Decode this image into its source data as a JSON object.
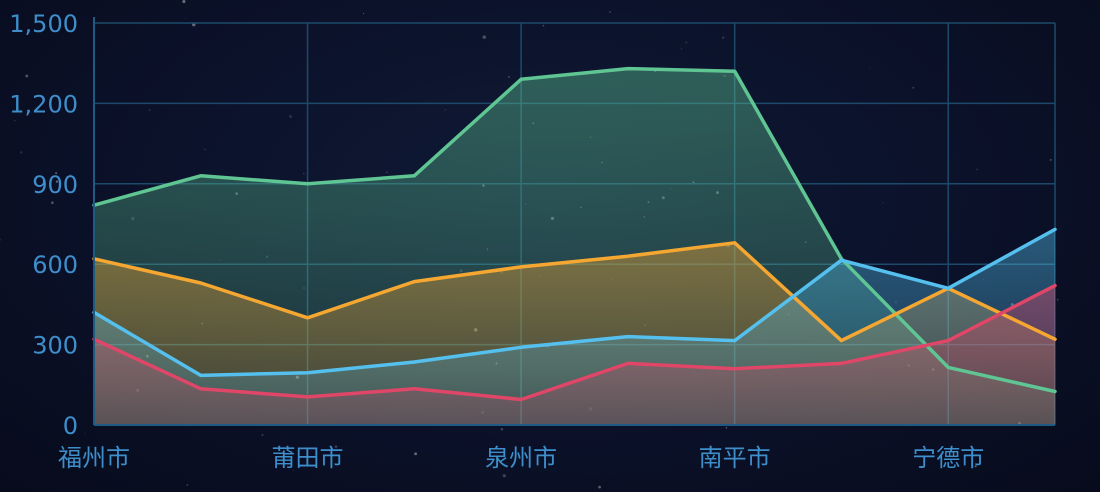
{
  "chart_data": {
    "type": "area",
    "title": "",
    "xlabel": "",
    "ylabel": "",
    "categories": [
      "福州市",
      "",
      "莆田市",
      "",
      "泉州市",
      "",
      "南平市",
      "",
      "宁德市",
      ""
    ],
    "x_tick_labels": [
      "福州市",
      "莆田市",
      "泉州市",
      "南平市",
      "宁德市"
    ],
    "y_tick_labels": [
      "0",
      "300",
      "600",
      "900",
      "1,200",
      "1,500"
    ],
    "ylim": [
      0,
      1500
    ],
    "grid": true,
    "legend": "none",
    "series": [
      {
        "color": "#5ec593",
        "values": [
          820,
          930,
          900,
          930,
          1290,
          1330,
          1320,
          620,
          215,
          125
        ]
      },
      {
        "color": "#f5a732",
        "values": [
          620,
          530,
          400,
          535,
          590,
          630,
          680,
          315,
          510,
          320
        ]
      },
      {
        "color": "#55c0ee",
        "values": [
          420,
          185,
          195,
          235,
          290,
          330,
          315,
          615,
          510,
          730
        ]
      },
      {
        "color": "#e04667",
        "values": [
          320,
          135,
          105,
          135,
          95,
          230,
          210,
          230,
          315,
          520
        ]
      }
    ]
  }
}
